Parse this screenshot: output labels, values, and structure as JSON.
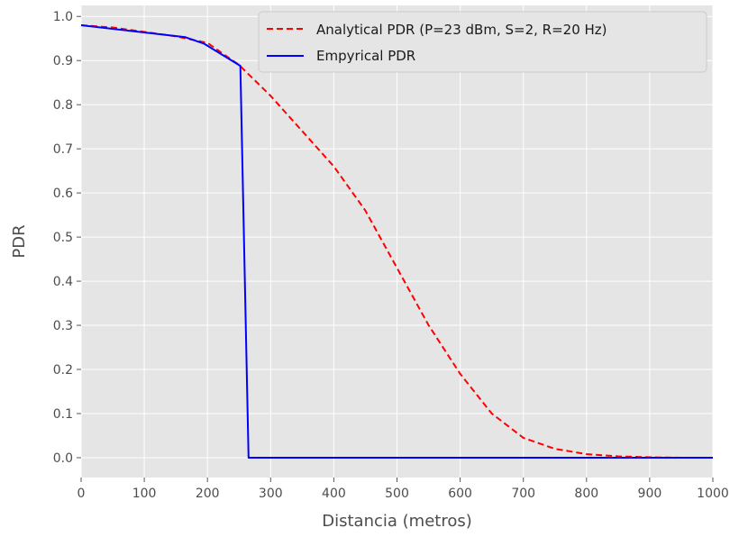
{
  "chart_data": {
    "type": "line",
    "title": "",
    "xlabel": "Distancia (metros)",
    "ylabel": "PDR",
    "xlim": [
      0,
      1000
    ],
    "ylim": [
      -0.045,
      1.025
    ],
    "x_ticks": [
      0,
      100,
      200,
      300,
      400,
      500,
      600,
      700,
      800,
      900,
      1000
    ],
    "y_ticks": [
      0.0,
      0.1,
      0.2,
      0.3,
      0.4,
      0.5,
      0.6,
      0.7,
      0.8,
      0.9,
      1.0
    ],
    "grid": true,
    "legend_position": "upper-right",
    "background": "#e5e5e5",
    "series": [
      {
        "name": "Analytical PDR (P=23 dBm, S=2, R=20 Hz)",
        "color": "#ff0000",
        "style": "dashed",
        "x": [
          0,
          50,
          100,
          150,
          200,
          250,
          300,
          350,
          400,
          450,
          500,
          550,
          600,
          650,
          700,
          750,
          800,
          850,
          900,
          950,
          1000
        ],
        "y": [
          0.98,
          0.975,
          0.965,
          0.955,
          0.94,
          0.89,
          0.82,
          0.74,
          0.66,
          0.56,
          0.43,
          0.3,
          0.19,
          0.1,
          0.045,
          0.02,
          0.008,
          0.003,
          0.001,
          0.0,
          0.0
        ]
      },
      {
        "name": "Empyrical PDR",
        "color": "#0000ff",
        "style": "solid",
        "x": [
          0,
          165,
          195,
          252,
          265,
          1000
        ],
        "y": [
          0.98,
          0.953,
          0.938,
          0.888,
          0.0,
          0.0
        ]
      }
    ]
  }
}
